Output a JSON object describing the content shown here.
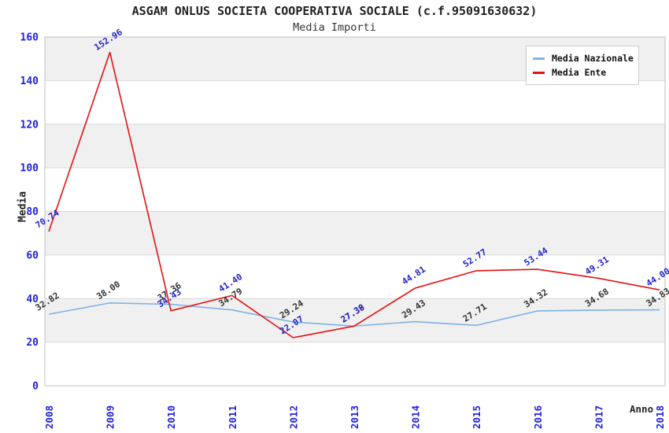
{
  "title": "ASGAM ONLUS SOCIETA COOPERATIVA SOCIALE (c.f.95091630632)",
  "subtitle": "Media Importi",
  "colors": {
    "axis_tick_blue": "#2222DD",
    "band_gray": "#F0F0F0",
    "gridline": "#D9D9D9",
    "plot_border": "#C0C0C0",
    "nazionale_line": "#7EB3E6",
    "ente_line": "#E51010",
    "nazionale_label": "#333333",
    "ente_label": "#2424C8"
  },
  "chart_data": {
    "type": "line",
    "title": "ASGAM ONLUS SOCIETA COOPERATIVA SOCIALE (c.f.95091630632)",
    "subtitle": "Media Importi",
    "xlabel": "Anno",
    "ylabel": "Media",
    "x": [
      "2008",
      "2009",
      "2010",
      "2011",
      "2012",
      "2013",
      "2014",
      "2015",
      "2016",
      "2017",
      "2018"
    ],
    "ylim": [
      0,
      160
    ],
    "yticks": [
      0,
      20,
      40,
      60,
      80,
      100,
      120,
      140,
      160
    ],
    "grid": "horizontal gridlines with alternating gray bands every 20 units",
    "legend_position": "top-right",
    "point_labels": "each point labeled with value, 2 decimals, rotated ~-33deg",
    "series": [
      {
        "name": "Media Nazionale",
        "color": "#7EB3E6",
        "label_color": "#333333",
        "values": [
          32.82,
          38.0,
          37.36,
          34.79,
          29.24,
          27.39,
          29.43,
          27.71,
          34.32,
          34.68,
          34.83
        ]
      },
      {
        "name": "Media Ente",
        "color": "#E51010",
        "label_color": "#2424C8",
        "values": [
          70.74,
          152.96,
          34.43,
          41.4,
          22.07,
          27.38,
          44.81,
          52.77,
          53.44,
          49.31,
          44.0
        ]
      }
    ]
  }
}
